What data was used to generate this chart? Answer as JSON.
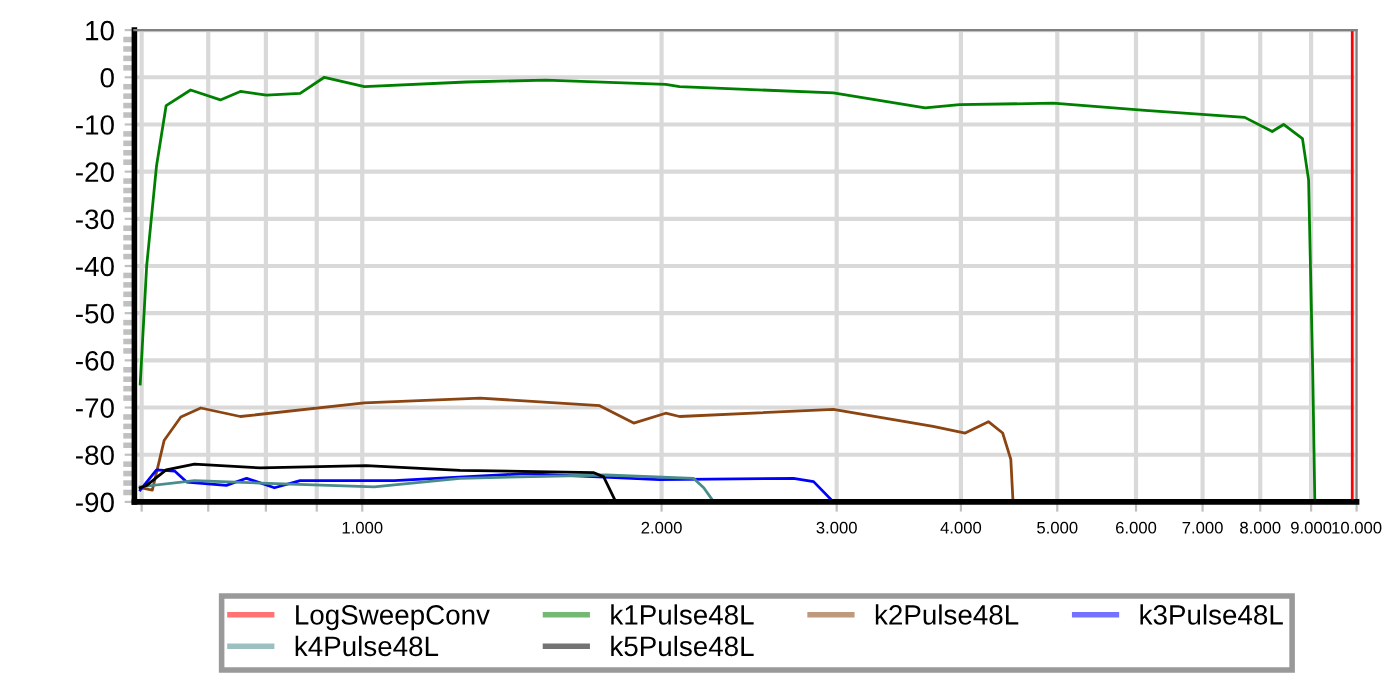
{
  "chart_data": {
    "type": "line",
    "xlim": [
      590,
      10000
    ],
    "ylim": [
      -90,
      10
    ],
    "log": "x",
    "xticks": [
      {
        "value": 600,
        "label": null
      },
      {
        "value": 700,
        "label": null
      },
      {
        "value": 800,
        "label": null
      },
      {
        "value": 900,
        "label": null
      },
      {
        "value": 1000,
        "label": "1.000"
      },
      {
        "value": 2000,
        "label": "2.000"
      },
      {
        "value": 3000,
        "label": "3.000"
      },
      {
        "value": 4000,
        "label": "4.000"
      },
      {
        "value": 5000,
        "label": "5.000"
      },
      {
        "value": 6000,
        "label": "6.000"
      },
      {
        "value": 7000,
        "label": "7.000"
      },
      {
        "value": 8000,
        "label": "8.000"
      },
      {
        "value": 9000,
        "label": "9.000"
      },
      {
        "value": 10000,
        "label": "10.000"
      }
    ],
    "yticks": [
      -90,
      -80,
      -70,
      -60,
      -50,
      -40,
      -30,
      -20,
      -10,
      0,
      10
    ],
    "grid": true,
    "legend": "bottom",
    "line_style": "solid",
    "marker": "none",
    "series": [
      {
        "name": "LogSweepConv",
        "color": "#ff0000",
        "x": [
          9900,
          9900,
          9900,
          9900,
          9900
        ],
        "values": [
          -90,
          -70,
          -40,
          -10,
          10
        ]
      },
      {
        "name": "k1Pulse48L",
        "color": "#008000",
        "x": [
          598,
          607,
          621,
          635,
          672,
          720,
          754,
          801,
          866,
          916,
          1005,
          1272,
          1530,
          2019,
          2085,
          2977,
          3682,
          3987,
          4951,
          6127,
          7717,
          8225,
          8444,
          8822,
          8948,
          9035,
          9078
        ],
        "values": [
          -65,
          -40,
          -18.8,
          -6,
          -2.7,
          -4.8,
          -3,
          -3.8,
          -3.4,
          0,
          -2,
          -1,
          -0.6,
          -1.5,
          -2,
          -3.3,
          -6.5,
          -5.8,
          -5.5,
          -7,
          -8.5,
          -11.5,
          -10,
          -13,
          -21.8,
          -62.9,
          -90
        ]
      },
      {
        "name": "k2Pulse48L",
        "color": "#8b4513",
        "x": [
          598,
          615,
          632,
          657,
          688,
          754,
          1005,
          1314,
          1733,
          1875,
          2019,
          2085,
          2977,
          3750,
          4040,
          4263,
          4406,
          4490,
          4513
        ],
        "values": [
          -87,
          -87.5,
          -77,
          -72,
          -70.1,
          -71.9,
          -69,
          -68,
          -69.6,
          -73.3,
          -71.2,
          -71.9,
          -70.4,
          -74,
          -75.4,
          -73,
          -75.4,
          -81,
          -90
        ]
      },
      {
        "name": "k3Pulse48L",
        "color": "#0000ff",
        "x": [
          598,
          621,
          648,
          666,
          730,
          765,
          816,
          866,
          1077,
          1461,
          1990,
          2714,
          2844,
          2977
        ],
        "values": [
          -87.5,
          -83.2,
          -83.5,
          -85.8,
          -86.5,
          -85,
          -87,
          -85.5,
          -85.5,
          -84,
          -85.3,
          -85,
          -85.7,
          -90
        ]
      },
      {
        "name": "k4Pulse48L",
        "color": "#4a8c8c",
        "x": [
          598,
          678,
          790,
          1028,
          1254,
          1758,
          2153,
          2205,
          2257
        ],
        "values": [
          -86.8,
          -85.5,
          -86,
          -86.8,
          -85,
          -84.3,
          -85,
          -87,
          -90
        ]
      },
      {
        "name": "k5Pulse48L",
        "color": "#000000",
        "x": [
          598,
          607,
          635,
          678,
          790,
          1009,
          1254,
          1710,
          1749,
          1799
        ],
        "values": [
          -87,
          -86.5,
          -83.2,
          -82,
          -82.8,
          -82.3,
          -83.3,
          -83.8,
          -84.7,
          -90
        ]
      }
    ]
  }
}
